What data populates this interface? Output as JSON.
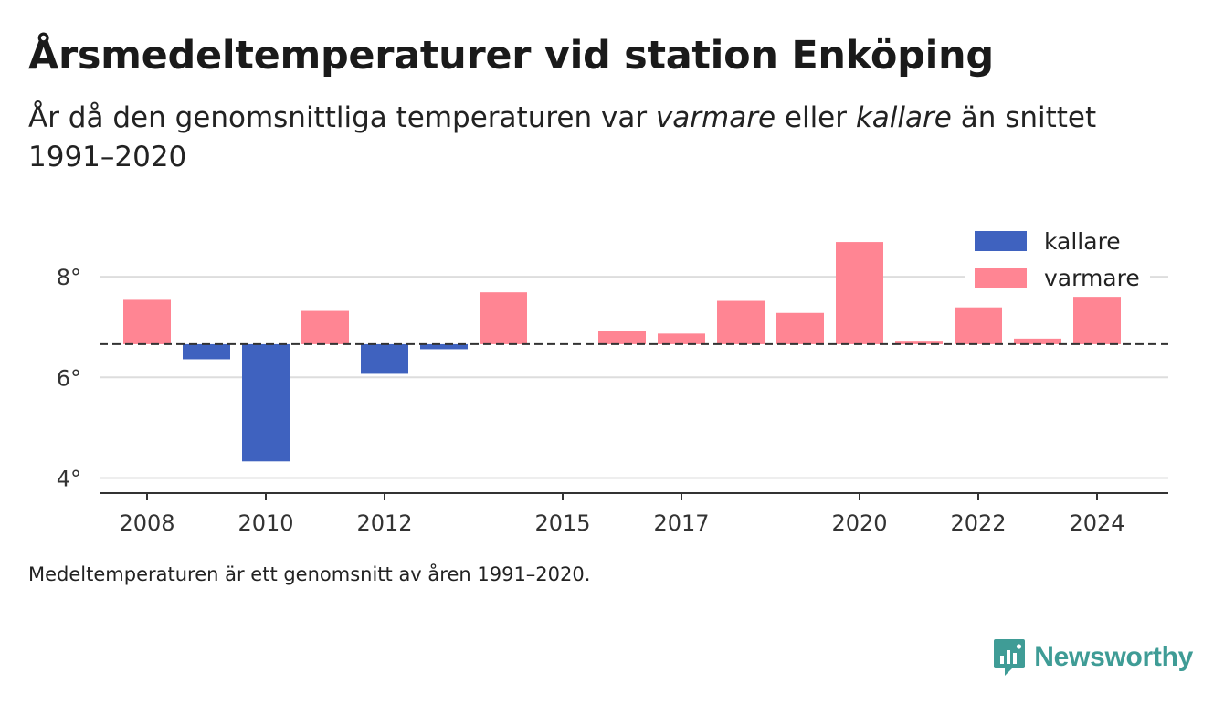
{
  "title": "Årsmedeltemperaturer vid station Enköping",
  "subtitle": {
    "prefix": "År då den genomsnittliga temperaturen var ",
    "warm_word": "varmare",
    "middle": " eller ",
    "cold_word": "kallare",
    "suffix": " än snittet 1991–2020"
  },
  "footnote": "Medeltemperaturen är ett genomsnitt av åren 1991–2020.",
  "brand": "Newsworthy",
  "colors": {
    "kallare": "#3f62bf",
    "varmare": "#ff8593",
    "reference_line": "#333333",
    "grid": "#dddddd",
    "brand": "#3f9c96"
  },
  "chart_data": {
    "type": "bar",
    "baseline": 6.66,
    "baseline_style": "dashed",
    "ylim": [
      3.7,
      9.0
    ],
    "yticks": [
      4,
      6,
      8
    ],
    "ytick_labels": [
      "4°",
      "6°",
      "8°"
    ],
    "xlim": [
      2007.2,
      2025.2
    ],
    "xticks": [
      2008,
      2010,
      2012,
      2015,
      2017,
      2020,
      2022,
      2024
    ],
    "xtick_labels": [
      "2008",
      "2010",
      "2012",
      "2015",
      "2017",
      "2020",
      "2022",
      "2024"
    ],
    "grid": true,
    "legend": {
      "position": "top-right",
      "entries": [
        {
          "key": "kallare",
          "label": "kallare"
        },
        {
          "key": "varmare",
          "label": "varmare"
        }
      ]
    },
    "bars": [
      {
        "year": 2008,
        "value": 7.54
      },
      {
        "year": 2009,
        "value": 6.36
      },
      {
        "year": 2010,
        "value": 4.33
      },
      {
        "year": 2011,
        "value": 7.32
      },
      {
        "year": 2012,
        "value": 6.07
      },
      {
        "year": 2013,
        "value": 6.56
      },
      {
        "year": 2014,
        "value": 7.69
      },
      {
        "year": 2016,
        "value": 6.92
      },
      {
        "year": 2017,
        "value": 6.87
      },
      {
        "year": 2018,
        "value": 7.52
      },
      {
        "year": 2019,
        "value": 7.28
      },
      {
        "year": 2020,
        "value": 8.69
      },
      {
        "year": 2021,
        "value": 6.71
      },
      {
        "year": 2022,
        "value": 7.39
      },
      {
        "year": 2023,
        "value": 6.77
      },
      {
        "year": 2024,
        "value": 7.6
      }
    ]
  }
}
